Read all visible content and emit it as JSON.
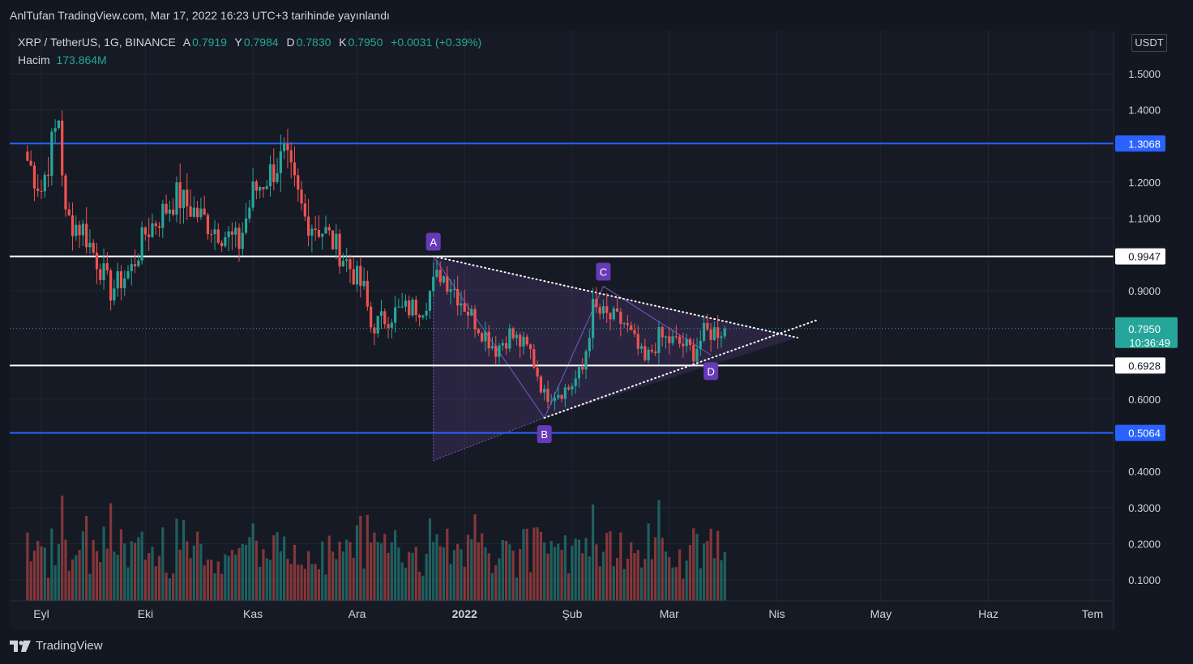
{
  "header": {
    "published": "AnlTufan TradingView.com, Mar 17, 2022 16:23 UTC+3 tarihinde yayınlandı"
  },
  "legend": {
    "symbol": "XRP / TetherUS, 1G, BINANCE",
    "open_label": "A",
    "open": "0.7919",
    "high_label": "Y",
    "high": "0.7984",
    "low_label": "D",
    "low": "0.7830",
    "close_label": "K",
    "close": "0.7950",
    "change": "+0.0031 (+0.39%)",
    "volume_label": "Hacim",
    "volume": "173.864M"
  },
  "brand": {
    "name": "TradingView",
    "logo_icon": "tradingview-logo-icon"
  },
  "colors": {
    "background": "#131722",
    "up": "#26a69a",
    "down": "#ef5350",
    "support_blue": "#2962ff",
    "level_white": "#ffffff",
    "pattern": "#7e57c2"
  },
  "chart_data": {
    "type": "candlestick",
    "symbol": "XRP / TetherUS",
    "timeframe": "1G",
    "exchange": "BINANCE",
    "unit": "USDT",
    "y_ticks": [
      "1.5000",
      "1.4000",
      "1.2000",
      "1.1000",
      "0.9000",
      "0.6000",
      "0.4000",
      "0.3000",
      "0.2000",
      "0.1000"
    ],
    "x_ticks": [
      {
        "label": "Eyl",
        "date": "2021-09-01"
      },
      {
        "label": "Eki",
        "date": "2021-10-01"
      },
      {
        "label": "Kas",
        "date": "2021-11-01"
      },
      {
        "label": "Ara",
        "date": "2021-12-01"
      },
      {
        "label": "2022",
        "date": "2022-01-01"
      },
      {
        "label": "Şub",
        "date": "2022-02-01"
      },
      {
        "label": "Mar",
        "date": "2022-03-01"
      },
      {
        "label": "Nis",
        "date": "2022-04-01"
      },
      {
        "label": "May",
        "date": "2022-05-01"
      },
      {
        "label": "Haz",
        "date": "2022-06-01"
      },
      {
        "label": "Tem",
        "date": "2022-07-01"
      }
    ],
    "ylim": [
      0.0,
      1.6
    ],
    "price_path": [
      {
        "date": "2021-08-28",
        "price": 1.26
      },
      {
        "date": "2021-09-01",
        "price": 1.18
      },
      {
        "date": "2021-09-06",
        "price": 1.38
      },
      {
        "date": "2021-09-08",
        "price": 1.1
      },
      {
        "date": "2021-09-13",
        "price": 1.07
      },
      {
        "date": "2021-09-21",
        "price": 0.9
      },
      {
        "date": "2021-09-27",
        "price": 0.96
      },
      {
        "date": "2021-10-01",
        "price": 1.06
      },
      {
        "date": "2021-10-10",
        "price": 1.16
      },
      {
        "date": "2021-10-20",
        "price": 1.08
      },
      {
        "date": "2021-10-28",
        "price": 1.03
      },
      {
        "date": "2021-11-01",
        "price": 1.17
      },
      {
        "date": "2021-11-10",
        "price": 1.27
      },
      {
        "date": "2021-11-16",
        "price": 1.1
      },
      {
        "date": "2021-11-22",
        "price": 1.06
      },
      {
        "date": "2021-11-28",
        "price": 0.98
      },
      {
        "date": "2021-12-03",
        "price": 0.9
      },
      {
        "date": "2021-12-05",
        "price": 0.8
      },
      {
        "date": "2021-12-12",
        "price": 0.84
      },
      {
        "date": "2021-12-20",
        "price": 0.86
      },
      {
        "date": "2021-12-25",
        "price": 0.95
      },
      {
        "date": "2021-12-28",
        "price": 0.92
      },
      {
        "date": "2022-01-03",
        "price": 0.83
      },
      {
        "date": "2022-01-10",
        "price": 0.74
      },
      {
        "date": "2022-01-14",
        "price": 0.78
      },
      {
        "date": "2022-01-20",
        "price": 0.73
      },
      {
        "date": "2022-01-24",
        "price": 0.61
      },
      {
        "date": "2022-01-31",
        "price": 0.63
      },
      {
        "date": "2022-02-04",
        "price": 0.68
      },
      {
        "date": "2022-02-07",
        "price": 0.85
      },
      {
        "date": "2022-02-10",
        "price": 0.83
      },
      {
        "date": "2022-02-16",
        "price": 0.81
      },
      {
        "date": "2022-02-22",
        "price": 0.7
      },
      {
        "date": "2022-02-26",
        "price": 0.77
      },
      {
        "date": "2022-03-05",
        "price": 0.75
      },
      {
        "date": "2022-03-08",
        "price": 0.73
      },
      {
        "date": "2022-03-11",
        "price": 0.78
      },
      {
        "date": "2022-03-17",
        "price": 0.795
      }
    ],
    "horizontal_levels": [
      {
        "value": 1.3068,
        "label": "1.3068",
        "color": "#2962ff"
      },
      {
        "value": 0.9947,
        "label": "0.9947",
        "color": "#ffffff"
      },
      {
        "value": 0.6928,
        "label": "0.6928",
        "color": "#ffffff"
      },
      {
        "value": 0.5064,
        "label": "0.5064",
        "color": "#2962ff"
      }
    ],
    "last_price": {
      "value": 0.795,
      "label": "0.7950",
      "countdown": "10:36:49"
    },
    "pattern": {
      "points": [
        {
          "label": "A",
          "date": "2021-12-23",
          "price": 0.995
        },
        {
          "label": "B",
          "date": "2022-01-24",
          "price": 0.548
        },
        {
          "label": "C",
          "date": "2022-02-10",
          "price": 0.912
        },
        {
          "label": "D",
          "date": "2022-03-13",
          "price": 0.722
        }
      ],
      "apex": {
        "date": "2022-04-07",
        "price": 0.77
      },
      "upper_end": {
        "date": "2022-04-07",
        "price": 0.77
      },
      "lower_end": {
        "date": "2022-04-13",
        "price": 0.82
      },
      "shaded_bottom": {
        "date": "2021-12-23",
        "price": 0.43
      }
    },
    "volume_label": "Hacim",
    "volume_last": "173.864M"
  }
}
